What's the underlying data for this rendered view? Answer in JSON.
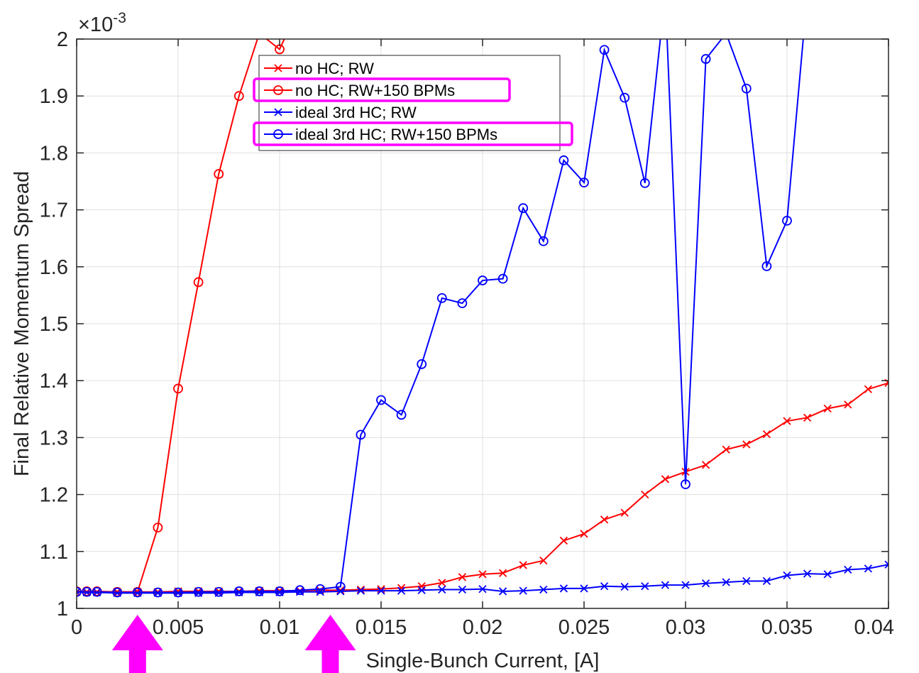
{
  "chart_data": {
    "type": "line",
    "xlabel": "Single-Bunch Current, [A]",
    "ylabel": "Final Relative Momentum Spread",
    "y_exponent_label": "×10",
    "y_exponent_power": "-3",
    "xlim": [
      0,
      0.04
    ],
    "ylim": [
      1.0,
      2.0
    ],
    "y_scale_factor": "1e-3",
    "grid": true,
    "legend_position": "top-center",
    "x_ticks": [
      0,
      0.005,
      0.01,
      0.015,
      0.02,
      0.025,
      0.03,
      0.035,
      0.04
    ],
    "x_tick_labels": [
      "0",
      "0.005",
      "0.01",
      "0.015",
      "0.02",
      "0.025",
      "0.03",
      "0.035",
      "0.04"
    ],
    "y_ticks": [
      1.0,
      1.1,
      1.2,
      1.3,
      1.4,
      1.5,
      1.6,
      1.7,
      1.8,
      1.9,
      2.0
    ],
    "y_tick_labels": [
      "1",
      "1.1",
      "1.2",
      "1.3",
      "1.4",
      "1.5",
      "1.6",
      "1.7",
      "1.8",
      "1.9",
      "2"
    ],
    "series": [
      {
        "name": "no HC; RW",
        "color": "#ff0000",
        "marker": "x",
        "highlighted": false,
        "x": [
          0,
          0.0005,
          0.001,
          0.002,
          0.003,
          0.004,
          0.005,
          0.006,
          0.007,
          0.008,
          0.009,
          0.01,
          0.011,
          0.012,
          0.013,
          0.014,
          0.015,
          0.016,
          0.017,
          0.018,
          0.019,
          0.02,
          0.021,
          0.022,
          0.023,
          0.024,
          0.025,
          0.026,
          0.027,
          0.028,
          0.029,
          0.03,
          0.031,
          0.032,
          0.033,
          0.034,
          0.035,
          0.036,
          0.037,
          0.038,
          0.039,
          0.04
        ],
        "y": [
          1.029,
          1.029,
          1.029,
          1.029,
          1.029,
          1.029,
          1.03,
          1.03,
          1.03,
          1.03,
          1.031,
          1.031,
          1.031,
          1.032,
          1.032,
          1.033,
          1.034,
          1.036,
          1.039,
          1.045,
          1.055,
          1.06,
          1.062,
          1.076,
          1.084,
          1.119,
          1.131,
          1.156,
          1.168,
          1.2,
          1.227,
          1.24,
          1.252,
          1.279,
          1.288,
          1.306,
          1.329,
          1.335,
          1.351,
          1.358,
          1.385,
          1.396
        ]
      },
      {
        "name": "no HC; RW+150 BPMs",
        "color": "#ff0000",
        "marker": "o",
        "highlighted": true,
        "x": [
          0,
          0.0005,
          0.001,
          0.002,
          0.003,
          0.004,
          0.005,
          0.006,
          0.007,
          0.008,
          0.009,
          0.01,
          0.011
        ],
        "y": [
          1.03,
          1.03,
          1.03,
          1.029,
          1.029,
          1.142,
          1.386,
          1.573,
          1.763,
          1.9,
          2.01,
          1.982,
          2.06
        ]
      },
      {
        "name": "ideal 3rd HC; RW",
        "color": "#0000ff",
        "marker": "x",
        "highlighted": false,
        "x": [
          0,
          0.0005,
          0.001,
          0.002,
          0.003,
          0.004,
          0.005,
          0.006,
          0.007,
          0.008,
          0.009,
          0.01,
          0.011,
          0.012,
          0.013,
          0.014,
          0.015,
          0.016,
          0.017,
          0.018,
          0.019,
          0.02,
          0.021,
          0.022,
          0.023,
          0.024,
          0.025,
          0.026,
          0.027,
          0.028,
          0.029,
          0.03,
          0.031,
          0.032,
          0.033,
          0.034,
          0.035,
          0.036,
          0.037,
          0.038,
          0.039,
          0.04
        ],
        "y": [
          1.029,
          1.028,
          1.028,
          1.027,
          1.027,
          1.027,
          1.027,
          1.027,
          1.027,
          1.028,
          1.028,
          1.028,
          1.029,
          1.029,
          1.03,
          1.031,
          1.031,
          1.031,
          1.032,
          1.033,
          1.033,
          1.034,
          1.03,
          1.031,
          1.033,
          1.035,
          1.035,
          1.039,
          1.038,
          1.039,
          1.041,
          1.041,
          1.044,
          1.046,
          1.048,
          1.048,
          1.058,
          1.061,
          1.06,
          1.068,
          1.07,
          1.077
        ]
      },
      {
        "name": "ideal 3rd HC; RW+150 BPMs",
        "color": "#0000ff",
        "marker": "o",
        "highlighted": true,
        "x": [
          0,
          0.0005,
          0.001,
          0.002,
          0.003,
          0.004,
          0.005,
          0.006,
          0.007,
          0.008,
          0.009,
          0.01,
          0.011,
          0.012,
          0.013,
          0.014,
          0.015,
          0.016,
          0.017,
          0.018,
          0.019,
          0.02,
          0.021,
          0.022,
          0.023,
          0.024,
          0.025,
          0.026,
          0.027,
          0.028,
          0.029,
          0.03,
          0.031,
          0.032,
          0.033,
          0.034,
          0.035,
          0.036
        ],
        "y": [
          1.029,
          1.029,
          1.029,
          1.028,
          1.028,
          1.028,
          1.028,
          1.029,
          1.029,
          1.03,
          1.03,
          1.03,
          1.032,
          1.034,
          1.038,
          1.305,
          1.366,
          1.34,
          1.429,
          1.545,
          1.536,
          1.576,
          1.579,
          1.703,
          1.645,
          1.787,
          1.748,
          1.981,
          1.897,
          1.747,
          2.08,
          1.218,
          1.965,
          2.01,
          1.913,
          1.601,
          1.681,
          2.08
        ]
      }
    ],
    "annotations": [
      {
        "type": "arrow",
        "color": "#ff00ff",
        "x": 0.003,
        "direction": "up"
      },
      {
        "type": "arrow",
        "color": "#ff00ff",
        "x": 0.0125,
        "direction": "up"
      }
    ]
  },
  "colors": {
    "highlight": "#ff00ff",
    "grid": "#dfdfdf",
    "axis": "#262626"
  }
}
